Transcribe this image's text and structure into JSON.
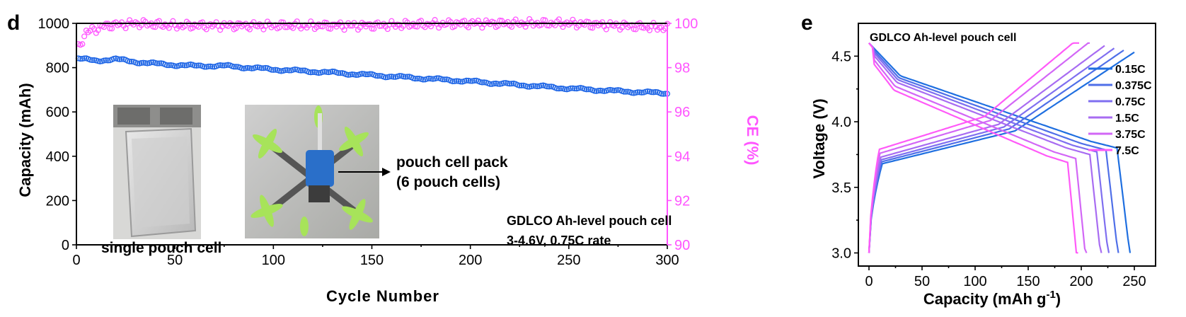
{
  "colors": {
    "capacity": "#1f66e6",
    "ce": "#ff55ff",
    "axis": "#000000"
  },
  "chart_data": [
    {
      "type": "scatter",
      "panel_label": "d",
      "xlabel": "Cycle Number",
      "ylabel": "Capacity (mAh)",
      "y2label": "CE (%)",
      "xlim": [
        0,
        300
      ],
      "ylim": [
        0,
        1000
      ],
      "y2lim": [
        90,
        100
      ],
      "xticks": [
        "0",
        "50",
        "100",
        "150",
        "200",
        "250",
        "300"
      ],
      "yticks": [
        "0",
        "200",
        "400",
        "600",
        "800",
        "1000"
      ],
      "y2ticks": [
        "90",
        "92",
        "94",
        "96",
        "98",
        "100"
      ],
      "series": [
        {
          "axis": "left",
          "color": "#1f66e6",
          "points": [
            [
              1,
              840
            ],
            [
              10,
              832
            ],
            [
              20,
              838
            ],
            [
              30,
              826
            ],
            [
              40,
              818
            ],
            [
              50,
              812
            ],
            [
              60,
              808
            ],
            [
              75,
              808
            ],
            [
              100,
              792
            ],
            [
              125,
              780
            ],
            [
              150,
              766
            ],
            [
              175,
              752
            ],
            [
              200,
              738
            ],
            [
              225,
              722
            ],
            [
              250,
              706
            ],
            [
              275,
              694
            ],
            [
              300,
              684
            ]
          ]
        },
        {
          "axis": "right",
          "color": "#ff55ff",
          "points": [
            [
              1,
              98.9
            ],
            [
              5,
              99.6
            ],
            [
              15,
              99.9
            ],
            [
              30,
              100.0
            ],
            [
              50,
              99.9
            ],
            [
              100,
              99.9
            ],
            [
              150,
              99.9
            ],
            [
              200,
              100.0
            ],
            [
              250,
              100.0
            ],
            [
              300,
              99.8
            ]
          ]
        }
      ],
      "annotations": {
        "legend_title": "GDLCO Ah-level pouch cell",
        "legend_subtitle": "3-4.6V, 0.75C rate",
        "photo1_caption": "single pouch cell",
        "photo2_caption_line1": "pouch cell pack",
        "photo2_caption_line2": "(6 pouch cells)"
      }
    },
    {
      "type": "line",
      "panel_label": "e",
      "title": "GDLCO Ah-level pouch cell",
      "xlabel": "Capacity (mAh g",
      "xlabel_sup": "-1",
      "xlabel_end": ")",
      "ylabel": "Voltage (V)",
      "xlim": [
        -10,
        270
      ],
      "ylim": [
        2.9,
        4.75
      ],
      "xticks": [
        "0",
        "50",
        "100",
        "150",
        "200",
        "250"
      ],
      "yticks": [
        "3.0",
        "3.5",
        "4.0",
        "4.5"
      ],
      "legend_position": "right",
      "series": [
        {
          "name": "0.15C",
          "color": "#1f6fe0",
          "charge_cap": 250,
          "discharge_cap": 246
        },
        {
          "name": "0.375C",
          "color": "#4f6fe8",
          "charge_cap": 240,
          "discharge_cap": 235
        },
        {
          "name": "0.75C",
          "color": "#7f6ff0",
          "charge_cap": 231,
          "discharge_cap": 226
        },
        {
          "name": "1.5C",
          "color": "#a86cf2",
          "charge_cap": 222,
          "discharge_cap": 219
        },
        {
          "name": "3.75C",
          "color": "#d267f6",
          "charge_cap": 208,
          "discharge_cap": 205
        },
        {
          "name": "7.5C",
          "color": "#ff5af8",
          "charge_cap": 198,
          "discharge_cap": 197
        }
      ]
    }
  ]
}
